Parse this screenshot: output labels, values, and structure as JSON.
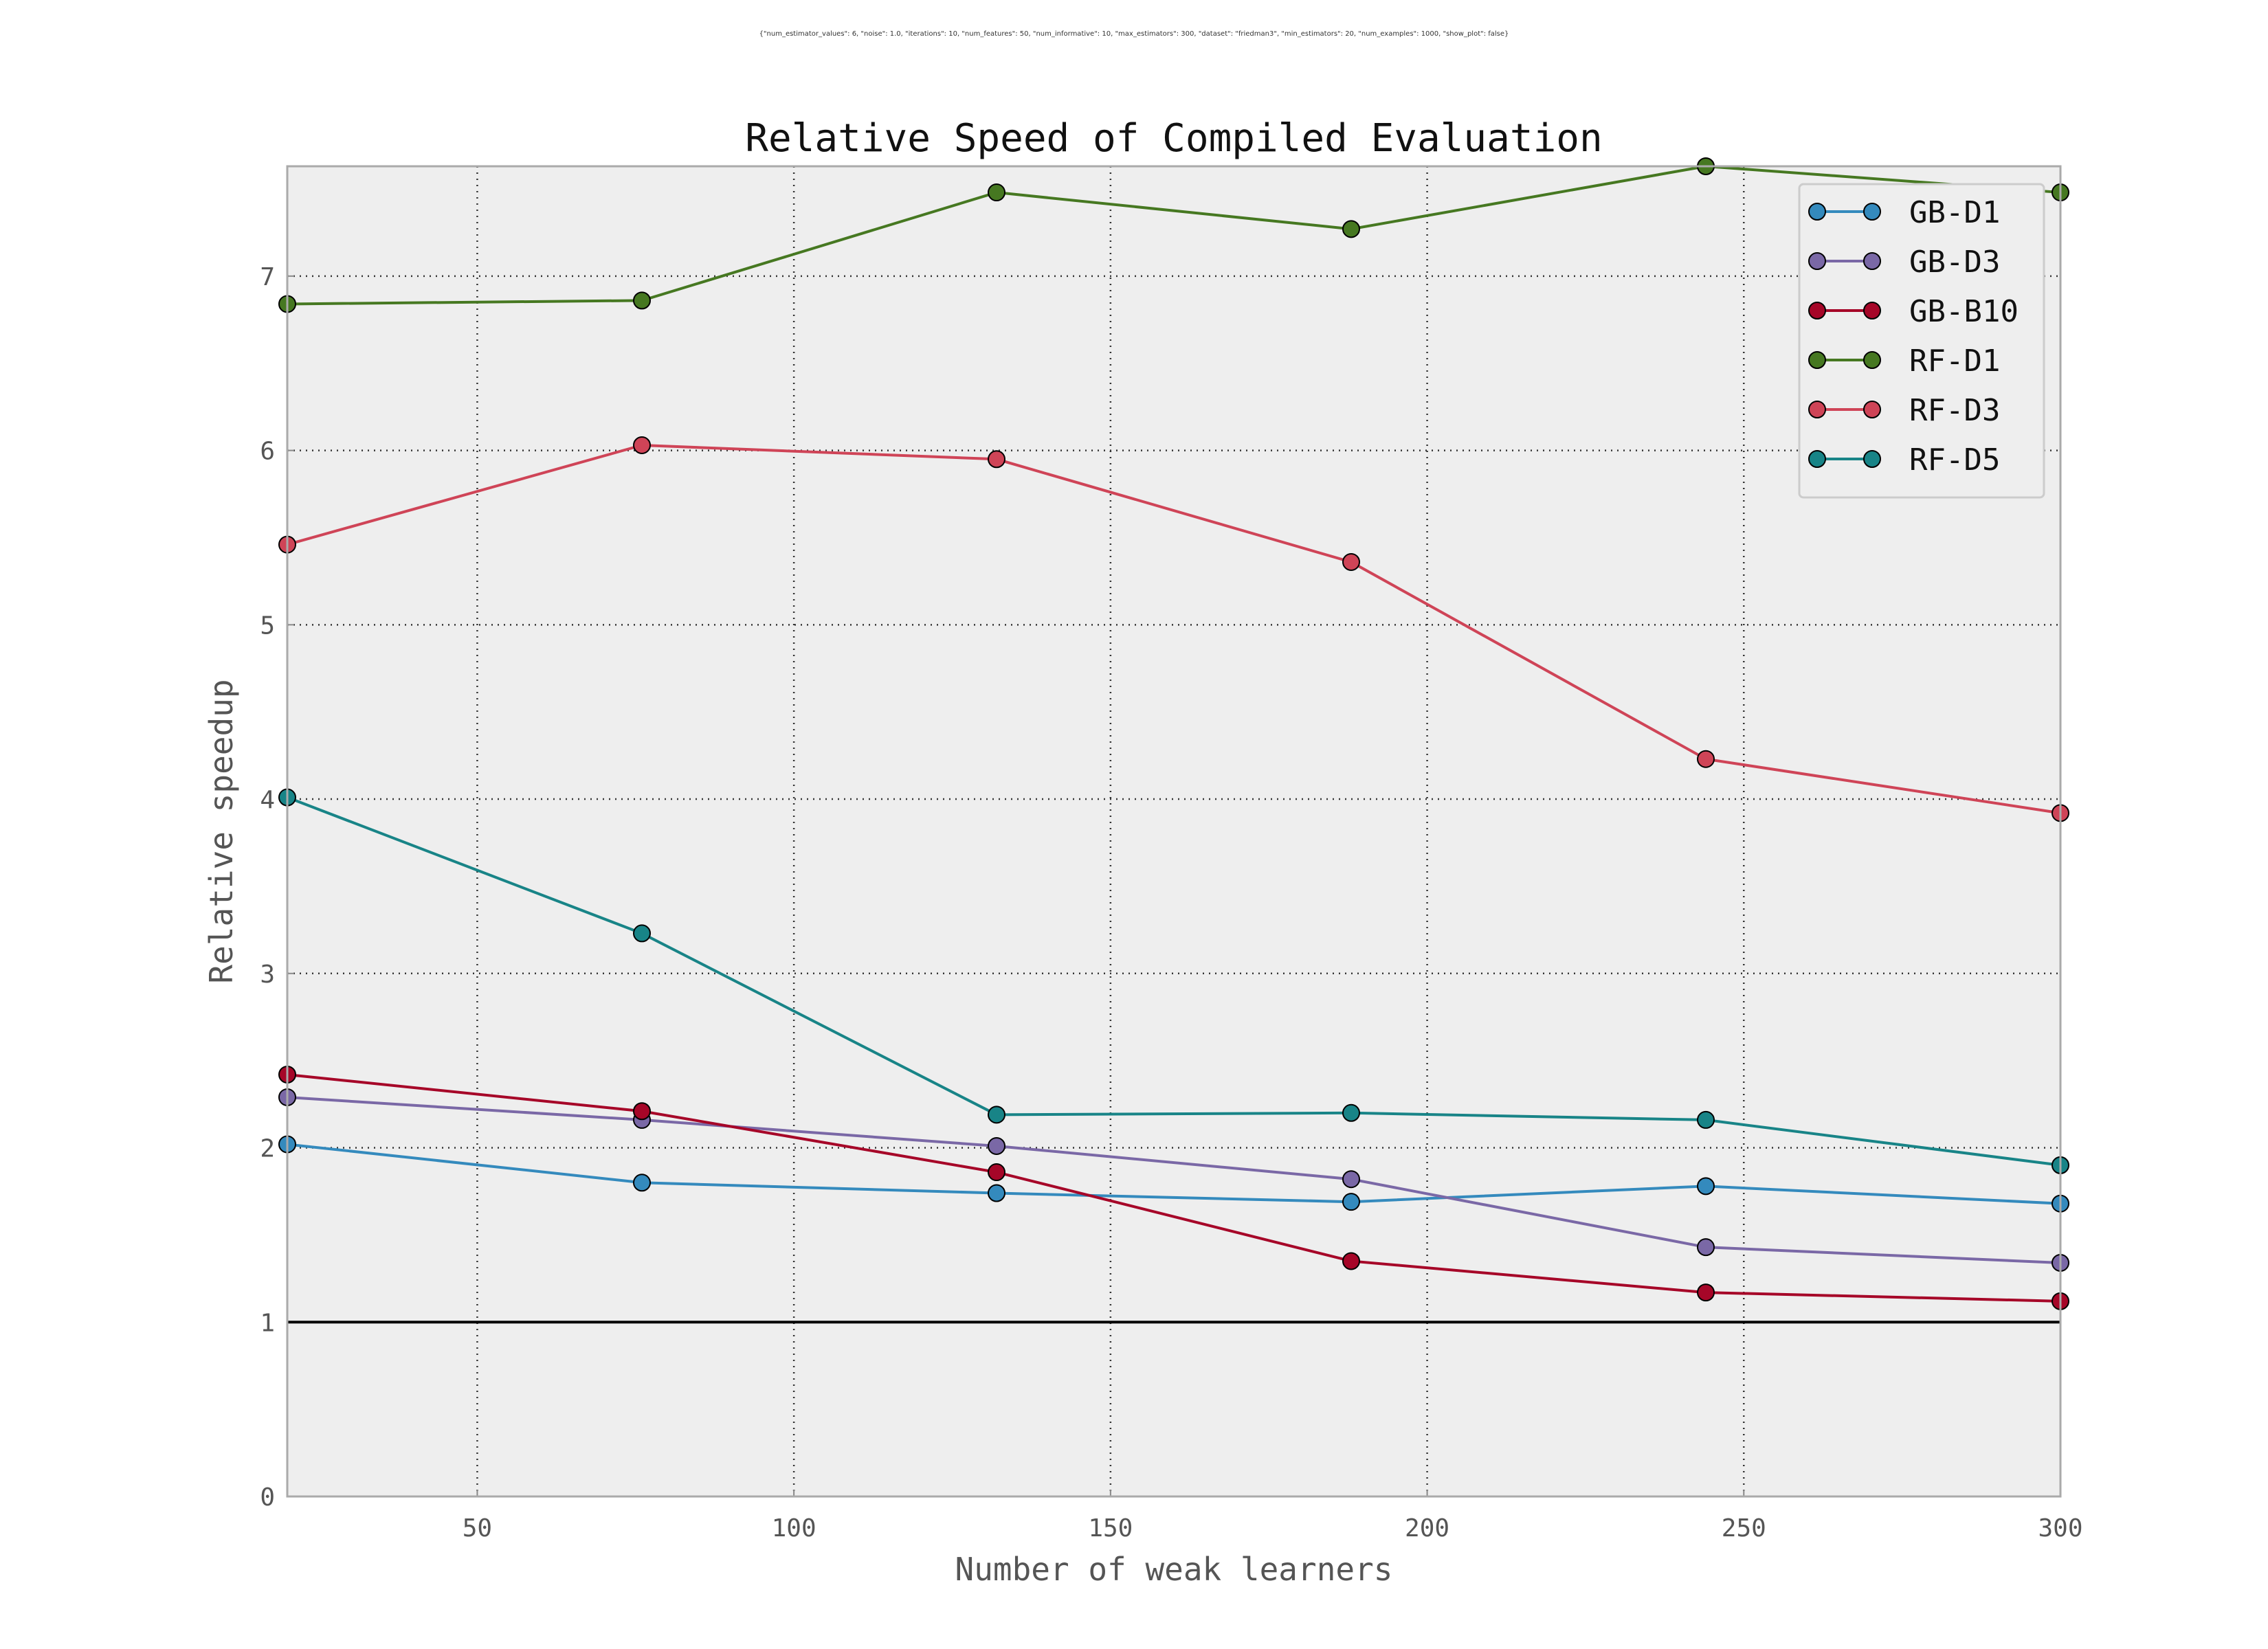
{
  "params_text": "{\"num_estimator_values\": 6, \"noise\": 1.0, \"iterations\": 10, \"num_features\": 50, \"num_informative\": 10, \"max_estimators\": 300, \"dataset\": \"friedman3\", \"min_estimators\": 20, \"num_examples\": 1000, \"show_plot\": false}",
  "chart_data": {
    "type": "line",
    "title": "Relative Speed of Compiled Evaluation",
    "xlabel": "Number of weak learners",
    "ylabel": "Relative speedup",
    "xlim": [
      20,
      300
    ],
    "ylim": [
      0,
      7.63
    ],
    "xticks": [
      50,
      100,
      150,
      200,
      250,
      300
    ],
    "yticks": [
      0,
      1,
      2,
      3,
      4,
      5,
      6,
      7
    ],
    "grid": true,
    "legend_position": "top-right",
    "reference_line_y": 1,
    "x": [
      20,
      76,
      132,
      188,
      244,
      300
    ],
    "series": [
      {
        "name": "GB-D1",
        "color": "#348ABD",
        "values": [
          2.02,
          1.8,
          1.74,
          1.69,
          1.78,
          1.68
        ]
      },
      {
        "name": "GB-D3",
        "color": "#7A68A6",
        "values": [
          2.29,
          2.16,
          2.01,
          1.82,
          1.43,
          1.34
        ]
      },
      {
        "name": "GB-B10",
        "color": "#A60628",
        "values": [
          2.42,
          2.21,
          1.86,
          1.35,
          1.17,
          1.12
        ]
      },
      {
        "name": "RF-D1",
        "color": "#467821",
        "values": [
          6.84,
          6.86,
          7.48,
          7.27,
          7.63,
          7.48
        ]
      },
      {
        "name": "RF-D3",
        "color": "#CF4457",
        "values": [
          5.46,
          6.03,
          5.95,
          5.36,
          4.23,
          3.92
        ]
      },
      {
        "name": "RF-D5",
        "color": "#188487",
        "values": [
          4.01,
          3.23,
          2.19,
          2.2,
          2.16,
          1.9
        ]
      }
    ]
  }
}
